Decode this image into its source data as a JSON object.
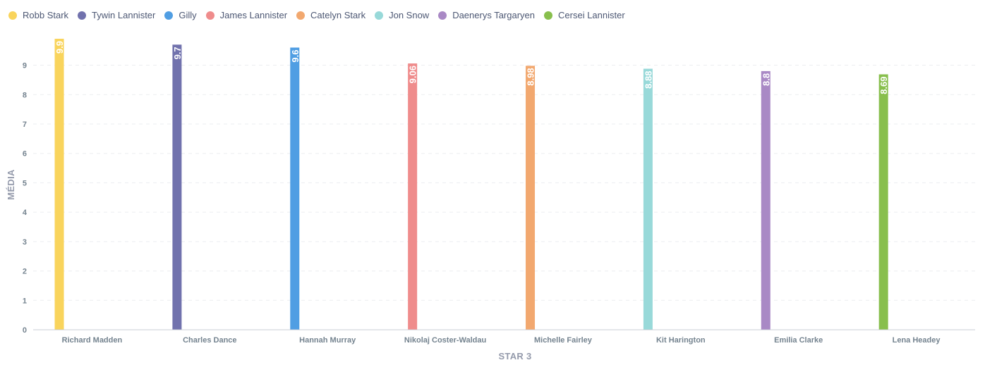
{
  "chart_data": {
    "type": "bar",
    "xlabel": "STAR 3",
    "ylabel": "MÉDIA",
    "ylim": [
      0,
      9.9
    ],
    "yticks": [
      "0",
      "1",
      "2",
      "3",
      "4",
      "5",
      "6",
      "7",
      "8",
      "9"
    ],
    "grid": true,
    "legend_position": "top-left",
    "categories": [
      "Richard Madden",
      "Charles Dance",
      "Hannah Murray",
      "Nikolaj Coster-Waldau",
      "Michelle Fairley",
      "Kit Harington",
      "Emilia Clarke",
      "Lena Headey"
    ],
    "series": [
      {
        "name": "Robb Stark",
        "color": "#F9D45C",
        "values": [
          9.9,
          null,
          null,
          null,
          null,
          null,
          null,
          null
        ],
        "labels": [
          "9.9"
        ]
      },
      {
        "name": "Tywin Lannister",
        "color": "#7172AD",
        "values": [
          null,
          9.7,
          null,
          null,
          null,
          null,
          null,
          null
        ],
        "labels": [
          "9.7"
        ]
      },
      {
        "name": "Gilly",
        "color": "#509EE3",
        "values": [
          null,
          null,
          9.6,
          null,
          null,
          null,
          null,
          null
        ],
        "labels": [
          "9.6"
        ]
      },
      {
        "name": "James Lannister",
        "color": "#EF8C8C",
        "values": [
          null,
          null,
          null,
          9.06,
          null,
          null,
          null,
          null
        ],
        "labels": [
          "9.06"
        ]
      },
      {
        "name": "Catelyn Stark",
        "color": "#F2A86F",
        "values": [
          null,
          null,
          null,
          null,
          8.98,
          null,
          null,
          null
        ],
        "labels": [
          "8.98"
        ]
      },
      {
        "name": "Jon Snow",
        "color": "#98D9D9",
        "values": [
          null,
          null,
          null,
          null,
          null,
          8.88,
          null,
          null
        ],
        "labels": [
          "8.88"
        ]
      },
      {
        "name": "Daenerys Targaryen",
        "color": "#A989C5",
        "values": [
          null,
          null,
          null,
          null,
          null,
          null,
          8.8,
          null
        ],
        "labels": [
          "8.8"
        ]
      },
      {
        "name": "Cersei Lannister",
        "color": "#88BF4D",
        "values": [
          null,
          null,
          null,
          null,
          null,
          null,
          null,
          8.69
        ],
        "labels": [
          "8.69"
        ]
      }
    ]
  }
}
